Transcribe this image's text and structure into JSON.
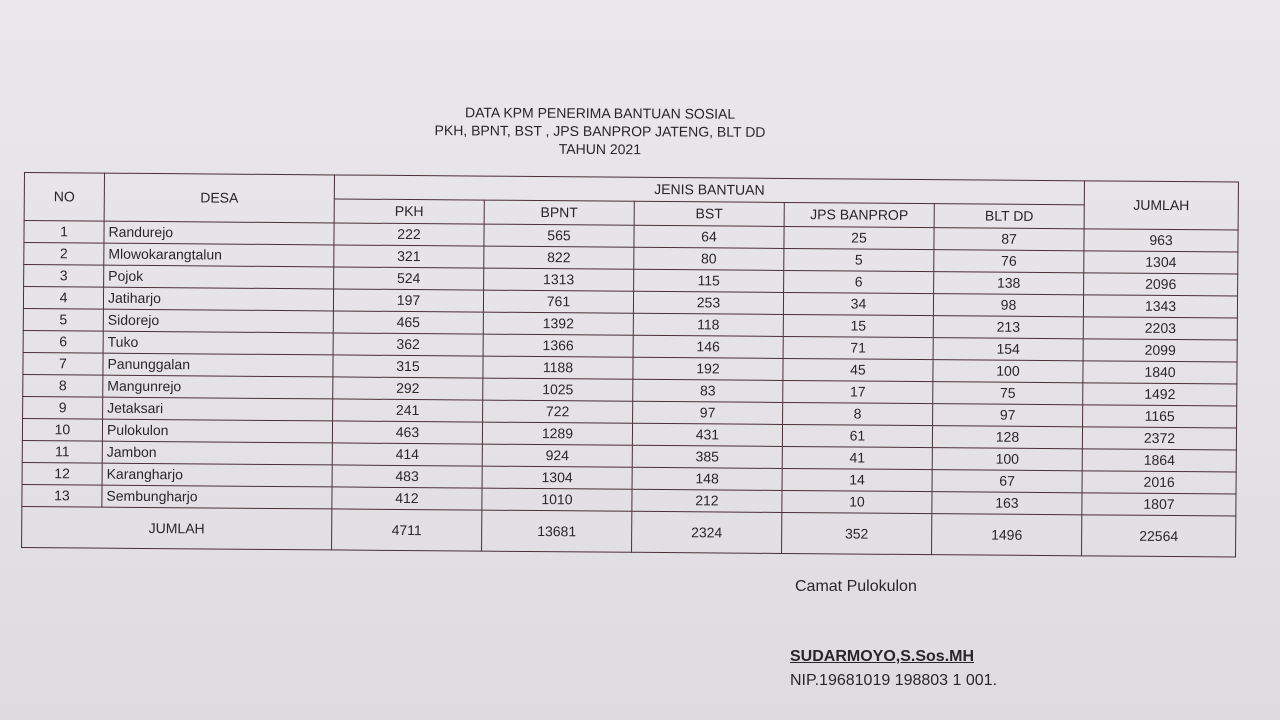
{
  "title": {
    "line1": "DATA KPM PENERIMA BANTUAN SOSIAL",
    "line2": "PKH, BPNT, BST , JPS BANPROP JATENG, BLT DD",
    "line3": "TAHUN 2021"
  },
  "table": {
    "headers": {
      "no": "NO",
      "desa": "DESA",
      "group": "JENIS BANTUAN",
      "jumlah": "JUMLAH",
      "columns": [
        "PKH",
        "BPNT",
        "BST",
        "JPS BANPROP",
        "BLT DD"
      ]
    },
    "rows": [
      {
        "no": "1",
        "desa": "Randurejo",
        "v": [
          "222",
          "565",
          "64",
          "25",
          "87"
        ],
        "jumlah": "963"
      },
      {
        "no": "2",
        "desa": "Mlowokarangtalun",
        "v": [
          "321",
          "822",
          "80",
          "5",
          "76"
        ],
        "jumlah": "1304"
      },
      {
        "no": "3",
        "desa": "Pojok",
        "v": [
          "524",
          "1313",
          "115",
          "6",
          "138"
        ],
        "jumlah": "2096"
      },
      {
        "no": "4",
        "desa": "Jatiharjo",
        "v": [
          "197",
          "761",
          "253",
          "34",
          "98"
        ],
        "jumlah": "1343"
      },
      {
        "no": "5",
        "desa": "Sidorejo",
        "v": [
          "465",
          "1392",
          "118",
          "15",
          "213"
        ],
        "jumlah": "2203"
      },
      {
        "no": "6",
        "desa": "Tuko",
        "v": [
          "362",
          "1366",
          "146",
          "71",
          "154"
        ],
        "jumlah": "2099"
      },
      {
        "no": "7",
        "desa": "Panunggalan",
        "v": [
          "315",
          "1188",
          "192",
          "45",
          "100"
        ],
        "jumlah": "1840"
      },
      {
        "no": "8",
        "desa": "Mangunrejo",
        "v": [
          "292",
          "1025",
          "83",
          "17",
          "75"
        ],
        "jumlah": "1492"
      },
      {
        "no": "9",
        "desa": "Jetaksari",
        "v": [
          "241",
          "722",
          "97",
          "8",
          "97"
        ],
        "jumlah": "1165"
      },
      {
        "no": "10",
        "desa": "Pulokulon",
        "v": [
          "463",
          "1289",
          "431",
          "61",
          "128"
        ],
        "jumlah": "2372"
      },
      {
        "no": "11",
        "desa": "Jambon",
        "v": [
          "414",
          "924",
          "385",
          "41",
          "100"
        ],
        "jumlah": "1864"
      },
      {
        "no": "12",
        "desa": "Karangharjo",
        "v": [
          "483",
          "1304",
          "148",
          "14",
          "67"
        ],
        "jumlah": "2016"
      },
      {
        "no": "13",
        "desa": "Sembungharjo",
        "v": [
          "412",
          "1010",
          "212",
          "10",
          "163"
        ],
        "jumlah": "1807"
      }
    ],
    "total": {
      "label": "JUMLAH",
      "v": [
        "4711",
        "13681",
        "2324",
        "352",
        "1496"
      ],
      "jumlah": "22564"
    }
  },
  "signature": {
    "position": "Camat Pulokulon",
    "name": "SUDARMOYO,S.Sos.MH",
    "nip": "NIP.19681019 198803 1 001."
  }
}
